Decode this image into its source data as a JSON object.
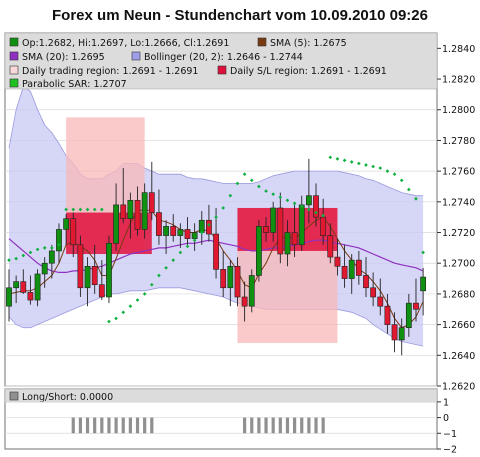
{
  "title": "Forex um Neun - Stundenchart vom 10.09.2010 09:26",
  "legend": {
    "ohlc": "Op:1.2682, Hi:1.2697, Lo:1.2666, Cl:1.2691",
    "sma5": "SMA (5): 1.2675",
    "sma20": "SMA (20): 1.2695",
    "bollinger": "Bollinger (20, 2): 1.2646 - 1.2744",
    "daily_range": "Daily trading region: 1.2691 - 1.2691",
    "daily_sl": "Daily S/L region: 1.2691 - 1.2691",
    "psar": "Parabolic SAR: 1.2707",
    "longshort": "Long/Short: 0.0000"
  },
  "colors": {
    "up_candle": "#109010",
    "down_candle": "#e01830",
    "sma5": "#7a3a10",
    "sma20": "#9030c0",
    "bollinger_fill": "#c8c8f4",
    "bollinger_line": "#9a9ae0",
    "daily_range": "#f8b8b8",
    "daily_sl": "#e0103c",
    "psar": "#10b040",
    "longshort_bar": "#909090"
  },
  "chart_data": {
    "type": "candlestick",
    "title": "Forex um Neun - Stundenchart vom 10.09.2010 09:26",
    "price_axis": {
      "min": 1.262,
      "max": 1.285,
      "ticks": [
        "1.2620",
        "1.2640",
        "1.2660",
        "1.2680",
        "1.2700",
        "1.2720",
        "1.2740",
        "1.2760",
        "1.2780",
        "1.2800",
        "1.2820",
        "1.2840"
      ]
    },
    "indicator_axis": {
      "min": -2,
      "max": 1.5,
      "ticks": [
        "1",
        "0",
        "−1",
        "−2"
      ]
    },
    "candles": [
      {
        "o": 1.2672,
        "h": 1.2696,
        "l": 1.2662,
        "c": 1.2684
      },
      {
        "o": 1.2684,
        "h": 1.2692,
        "l": 1.2674,
        "c": 1.2688
      },
      {
        "o": 1.2688,
        "h": 1.2696,
        "l": 1.268,
        "c": 1.2681
      },
      {
        "o": 1.2681,
        "h": 1.2692,
        "l": 1.2673,
        "c": 1.2676
      },
      {
        "o": 1.2676,
        "h": 1.2696,
        "l": 1.2672,
        "c": 1.2693
      },
      {
        "o": 1.2693,
        "h": 1.2704,
        "l": 1.2684,
        "c": 1.27
      },
      {
        "o": 1.27,
        "h": 1.2712,
        "l": 1.269,
        "c": 1.2708
      },
      {
        "o": 1.2708,
        "h": 1.2726,
        "l": 1.27,
        "c": 1.2722
      },
      {
        "o": 1.2722,
        "h": 1.2732,
        "l": 1.2712,
        "c": 1.2729
      },
      {
        "o": 1.2729,
        "h": 1.2733,
        "l": 1.2704,
        "c": 1.2712
      },
      {
        "o": 1.2712,
        "h": 1.2718,
        "l": 1.2678,
        "c": 1.2684
      },
      {
        "o": 1.2684,
        "h": 1.2704,
        "l": 1.2672,
        "c": 1.2698
      },
      {
        "o": 1.2698,
        "h": 1.2712,
        "l": 1.268,
        "c": 1.2686
      },
      {
        "o": 1.2686,
        "h": 1.2702,
        "l": 1.2676,
        "c": 1.2678
      },
      {
        "o": 1.2678,
        "h": 1.2718,
        "l": 1.2674,
        "c": 1.2713
      },
      {
        "o": 1.2713,
        "h": 1.2752,
        "l": 1.2708,
        "c": 1.2738
      },
      {
        "o": 1.2738,
        "h": 1.2762,
        "l": 1.2726,
        "c": 1.2729
      },
      {
        "o": 1.2729,
        "h": 1.2746,
        "l": 1.2716,
        "c": 1.2741
      },
      {
        "o": 1.2741,
        "h": 1.275,
        "l": 1.2718,
        "c": 1.2722
      },
      {
        "o": 1.2722,
        "h": 1.2752,
        "l": 1.2716,
        "c": 1.2746
      },
      {
        "o": 1.2746,
        "h": 1.2766,
        "l": 1.2728,
        "c": 1.2733
      },
      {
        "o": 1.2733,
        "h": 1.2748,
        "l": 1.2712,
        "c": 1.2718
      },
      {
        "o": 1.2718,
        "h": 1.2728,
        "l": 1.2706,
        "c": 1.2724
      },
      {
        "o": 1.2724,
        "h": 1.2732,
        "l": 1.2714,
        "c": 1.2718
      },
      {
        "o": 1.2718,
        "h": 1.2726,
        "l": 1.271,
        "c": 1.2722
      },
      {
        "o": 1.2722,
        "h": 1.273,
        "l": 1.2712,
        "c": 1.2716
      },
      {
        "o": 1.2716,
        "h": 1.2726,
        "l": 1.2708,
        "c": 1.272
      },
      {
        "o": 1.272,
        "h": 1.2734,
        "l": 1.2712,
        "c": 1.2728
      },
      {
        "o": 1.2728,
        "h": 1.2738,
        "l": 1.2714,
        "c": 1.2719
      },
      {
        "o": 1.2719,
        "h": 1.2736,
        "l": 1.269,
        "c": 1.2696
      },
      {
        "o": 1.2696,
        "h": 1.2708,
        "l": 1.2678,
        "c": 1.2684
      },
      {
        "o": 1.2684,
        "h": 1.2702,
        "l": 1.2672,
        "c": 1.2698
      },
      {
        "o": 1.2698,
        "h": 1.2704,
        "l": 1.2672,
        "c": 1.2678
      },
      {
        "o": 1.2678,
        "h": 1.2688,
        "l": 1.2662,
        "c": 1.2672
      },
      {
        "o": 1.2672,
        "h": 1.2696,
        "l": 1.2668,
        "c": 1.2692
      },
      {
        "o": 1.2692,
        "h": 1.2728,
        "l": 1.2688,
        "c": 1.2724
      },
      {
        "o": 1.2724,
        "h": 1.273,
        "l": 1.2714,
        "c": 1.272
      },
      {
        "o": 1.272,
        "h": 1.274,
        "l": 1.2714,
        "c": 1.2736
      },
      {
        "o": 1.2736,
        "h": 1.2746,
        "l": 1.27,
        "c": 1.2706
      },
      {
        "o": 1.2706,
        "h": 1.2728,
        "l": 1.2698,
        "c": 1.272
      },
      {
        "o": 1.272,
        "h": 1.2738,
        "l": 1.2704,
        "c": 1.2712
      },
      {
        "o": 1.2712,
        "h": 1.2744,
        "l": 1.2708,
        "c": 1.2738
      },
      {
        "o": 1.2738,
        "h": 1.2768,
        "l": 1.2726,
        "c": 1.2744
      },
      {
        "o": 1.2744,
        "h": 1.2752,
        "l": 1.2724,
        "c": 1.273
      },
      {
        "o": 1.273,
        "h": 1.2742,
        "l": 1.2712,
        "c": 1.2718
      },
      {
        "o": 1.2718,
        "h": 1.2726,
        "l": 1.27,
        "c": 1.2704
      },
      {
        "o": 1.2704,
        "h": 1.2716,
        "l": 1.2692,
        "c": 1.2698
      },
      {
        "o": 1.2698,
        "h": 1.2712,
        "l": 1.2684,
        "c": 1.269
      },
      {
        "o": 1.269,
        "h": 1.2706,
        "l": 1.268,
        "c": 1.2702
      },
      {
        "o": 1.2702,
        "h": 1.2708,
        "l": 1.2686,
        "c": 1.2692
      },
      {
        "o": 1.2692,
        "h": 1.2704,
        "l": 1.2678,
        "c": 1.2684
      },
      {
        "o": 1.2684,
        "h": 1.2694,
        "l": 1.2672,
        "c": 1.2678
      },
      {
        "o": 1.2678,
        "h": 1.269,
        "l": 1.2666,
        "c": 1.2672
      },
      {
        "o": 1.2672,
        "h": 1.268,
        "l": 1.2654,
        "c": 1.266
      },
      {
        "o": 1.266,
        "h": 1.2668,
        "l": 1.2642,
        "c": 1.265
      },
      {
        "o": 1.265,
        "h": 1.2664,
        "l": 1.264,
        "c": 1.2658
      },
      {
        "o": 1.2658,
        "h": 1.268,
        "l": 1.2652,
        "c": 1.2674
      },
      {
        "o": 1.2674,
        "h": 1.269,
        "l": 1.2662,
        "c": 1.267
      },
      {
        "o": 1.2682,
        "h": 1.2697,
        "l": 1.2666,
        "c": 1.2691
      }
    ],
    "sma20": [
      1.2716,
      1.2712,
      1.2708,
      1.2704,
      1.27,
      1.2697,
      1.2695,
      1.2694,
      1.2694,
      1.2695,
      1.2695,
      1.2696,
      1.2697,
      1.2698,
      1.27,
      1.2702,
      1.2704,
      1.2706,
      1.2707,
      1.2708,
      1.2709,
      1.271,
      1.271,
      1.2711,
      1.2712,
      1.2713,
      1.2713,
      1.2714,
      1.2715,
      1.2714,
      1.2713,
      1.2712,
      1.2711,
      1.2709,
      1.2708,
      1.2708,
      1.2709,
      1.271,
      1.271,
      1.2711,
      1.2712,
      1.2713,
      1.2714,
      1.2715,
      1.2715,
      1.2714,
      1.2713,
      1.2712,
      1.2711,
      1.271,
      1.2708,
      1.2706,
      1.2704,
      1.2702,
      1.27,
      1.2699,
      1.2698,
      1.2697,
      1.2695
    ],
    "sma5": [
      1.268,
      1.2681,
      1.2682,
      1.2682,
      1.2684,
      1.2688,
      1.2692,
      1.27,
      1.2712,
      1.2714,
      1.2711,
      1.2708,
      1.2702,
      1.2692,
      1.2692,
      1.2703,
      1.2715,
      1.2726,
      1.2734,
      1.2735,
      1.2734,
      1.2728,
      1.2727,
      1.2725,
      1.2722,
      1.272,
      1.272,
      1.2722,
      1.2721,
      1.2716,
      1.2708,
      1.2702,
      1.2695,
      1.2686,
      1.2684,
      1.2693,
      1.27,
      1.271,
      1.2716,
      1.2718,
      1.2716,
      1.272,
      1.2724,
      1.2728,
      1.273,
      1.2724,
      1.2716,
      1.2708,
      1.2702,
      1.2696,
      1.2693,
      1.2688,
      1.2682,
      1.2674,
      1.2664,
      1.2658,
      1.266,
      1.2665,
      1.2675
    ],
    "bollinger_upper": [
      1.2775,
      1.28,
      1.2815,
      1.2812,
      1.28,
      1.279,
      1.2785,
      1.2778,
      1.277,
      1.2765,
      1.2758,
      1.2755,
      1.2755,
      1.2755,
      1.2758,
      1.276,
      1.2765,
      1.2765,
      1.2765,
      1.2762,
      1.276,
      1.2758,
      1.2758,
      1.2758,
      1.2758,
      1.2756,
      1.2755,
      1.2755,
      1.2754,
      1.2753,
      1.2752,
      1.2752,
      1.2752,
      1.2752,
      1.2752,
      1.2753,
      1.2755,
      1.2757,
      1.2758,
      1.2759,
      1.276,
      1.276,
      1.276,
      1.276,
      1.276,
      1.276,
      1.276,
      1.2759,
      1.2758,
      1.2757,
      1.2755,
      1.2754,
      1.2752,
      1.275,
      1.2748,
      1.2746,
      1.2745,
      1.2744,
      1.2744
    ],
    "bollinger_lower": [
      1.2665,
      1.266,
      1.2658,
      1.2658,
      1.266,
      1.2662,
      1.2664,
      1.2666,
      1.2668,
      1.267,
      1.2672,
      1.2674,
      1.2676,
      1.2678,
      1.268,
      1.268,
      1.2681,
      1.2682,
      1.2682,
      1.2682,
      1.2683,
      1.2684,
      1.2684,
      1.2684,
      1.2684,
      1.2683,
      1.2682,
      1.2681,
      1.268,
      1.2679,
      1.2678,
      1.2676,
      1.2674,
      1.2673,
      1.2672,
      1.2671,
      1.267,
      1.267,
      1.267,
      1.267,
      1.267,
      1.267,
      1.267,
      1.267,
      1.267,
      1.267,
      1.267,
      1.2669,
      1.2668,
      1.2666,
      1.2664,
      1.266,
      1.2657,
      1.2654,
      1.2651,
      1.2649,
      1.2648,
      1.2647,
      1.2646
    ],
    "psar": [
      1.2702,
      1.2703,
      1.2705,
      1.2707,
      1.2709,
      1.271,
      1.271,
      1.2712,
      1.2735,
      1.2735,
      1.2735,
      1.2735,
      1.2735,
      1.2735,
      1.2662,
      1.2664,
      1.2668,
      1.2672,
      1.2676,
      1.268,
      1.2686,
      1.2692,
      1.2697,
      1.2702,
      1.2707,
      1.2711,
      1.2715,
      1.272,
      1.2725,
      1.273,
      1.2736,
      1.2744,
      1.2752,
      1.2758,
      1.2754,
      1.275,
      1.2747,
      1.2745,
      1.2743,
      1.2741,
      1.2739,
      1.2737,
      1.2735,
      1.2733,
      1.2731,
      1.2769,
      1.2768,
      1.2767,
      1.2766,
      1.2765,
      1.2764,
      1.2763,
      1.2762,
      1.276,
      1.2758,
      1.2754,
      1.2748,
      1.2742,
      1.2707
    ],
    "daily_ranges": [
      {
        "i_start": 8,
        "i_end": 19,
        "low": 1.2709,
        "high": 1.2795
      },
      {
        "i_start": 32,
        "i_end": 46,
        "low": 1.2648,
        "high": 1.2736
      }
    ],
    "daily_sl": [
      {
        "i_start": 8,
        "i_end": 20,
        "low": 1.2706,
        "high": 1.2733
      },
      {
        "i_start": 32,
        "i_end": 46,
        "low": 1.2708,
        "high": 1.2736
      }
    ],
    "longshort": [
      {
        "i_start": 9,
        "i_end": 20,
        "value": -1
      },
      {
        "i_start": 33,
        "i_end": 44,
        "value": -1
      }
    ]
  }
}
